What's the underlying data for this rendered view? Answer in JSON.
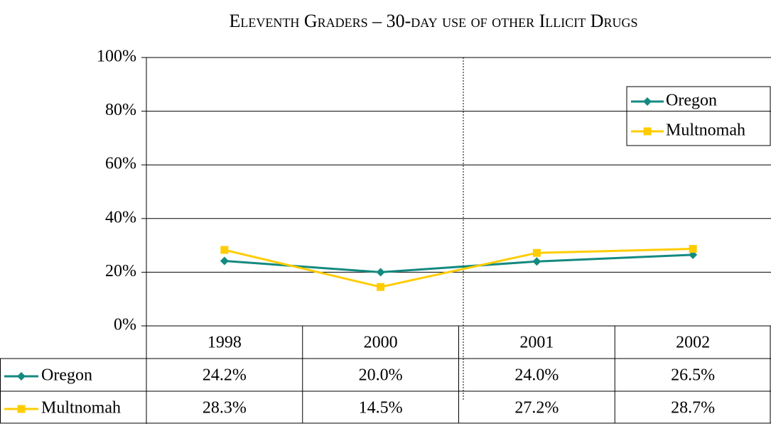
{
  "chart_data": {
    "type": "line",
    "title": "Eleventh Graders – 30-day use of other Illicit Drugs",
    "categories": [
      "1998",
      "2000",
      "2001",
      "2002"
    ],
    "series": [
      {
        "name": "Oregon",
        "color": "#138a80",
        "marker": "diamond",
        "values": [
          24.2,
          20.0,
          24.0,
          26.5
        ],
        "value_labels": [
          "24.2%",
          "20.0%",
          "24.0%",
          "26.5%"
        ]
      },
      {
        "name": "Multnomah",
        "color": "#ffcc00",
        "marker": "square",
        "values": [
          28.3,
          14.5,
          27.2,
          28.7
        ],
        "value_labels": [
          "28.3%",
          "14.5%",
          "27.2%",
          "28.7%"
        ]
      }
    ],
    "ylim": [
      0,
      100
    ],
    "yticks": [
      {
        "value": 0,
        "label": "0%"
      },
      {
        "value": 20,
        "label": "20%"
      },
      {
        "value": 40,
        "label": "40%"
      },
      {
        "value": 60,
        "label": "60%"
      },
      {
        "value": 80,
        "label": "80%"
      },
      {
        "value": 100,
        "label": "100%"
      }
    ],
    "grid": true,
    "legend": "upper right",
    "data_table": true
  }
}
